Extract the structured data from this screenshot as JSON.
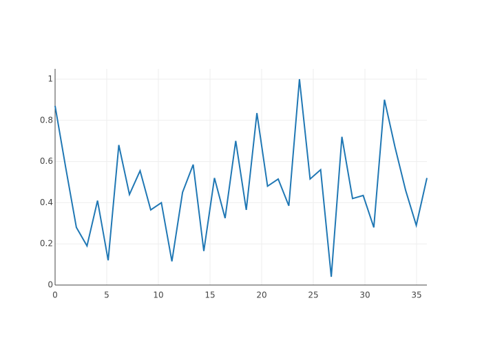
{
  "chart_data": {
    "type": "line",
    "x": [
      0,
      1.03,
      2.06,
      3.09,
      4.11,
      5.14,
      6.17,
      7.2,
      8.23,
      9.26,
      10.29,
      11.31,
      12.34,
      13.37,
      14.4,
      15.43,
      16.46,
      17.49,
      18.51,
      19.54,
      20.57,
      21.6,
      22.63,
      23.66,
      24.69,
      25.71,
      26.74,
      27.77,
      28.8,
      29.83,
      30.86,
      31.89,
      32.91,
      33.94,
      34.97,
      36
    ],
    "series": [
      {
        "color": "#1f77b4",
        "values": [
          0.87,
          0.57,
          0.28,
          0.19,
          0.41,
          0.12,
          0.68,
          0.44,
          0.555,
          0.365,
          0.4,
          0.115,
          0.45,
          0.585,
          0.165,
          0.52,
          0.325,
          0.7,
          0.365,
          0.835,
          0.48,
          0.515,
          0.385,
          1.0,
          0.515,
          0.56,
          0.04,
          0.72,
          0.42,
          0.435,
          0.28,
          0.9,
          0.67,
          0.46,
          0.29,
          0.52
        ]
      }
    ],
    "xlim": [
      0,
      36
    ],
    "xticks": [
      0,
      5,
      10,
      15,
      20,
      25,
      30,
      35
    ],
    "ylim": [
      0,
      1.05
    ],
    "yticks": [
      0,
      0.2,
      0.4,
      0.6,
      0.8,
      1
    ],
    "grid": true
  }
}
